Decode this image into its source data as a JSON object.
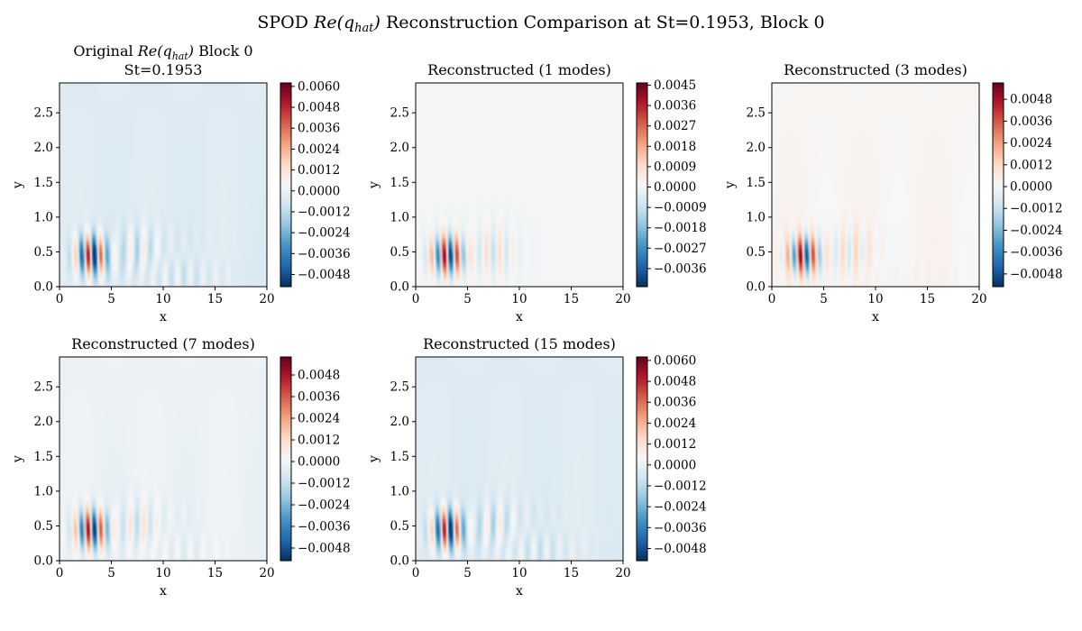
{
  "figure": {
    "suptitle_pre": "SPOD ",
    "suptitle_math": "Re(q",
    "suptitle_sub": "hat",
    "suptitle_math_end": ")",
    "suptitle_post": " Reconstruction Comparison at St=0.1953, Block 0"
  },
  "chart_data": [
    {
      "type": "heatmap",
      "title_pre": "Original ",
      "title_math": "Re(q",
      "title_sub": "hat",
      "title_math_end": ")",
      "title_post": " Block 0",
      "title_line2": "St=0.1953",
      "xlabel": "x",
      "ylabel": "y",
      "xlim": [
        0,
        20
      ],
      "ylim": [
        0,
        2.93
      ],
      "xticks": [
        "0",
        "5",
        "10",
        "15",
        "20"
      ],
      "yticks": [
        "0.0",
        "0.5",
        "1.0",
        "1.5",
        "2.0",
        "2.5"
      ],
      "colormap": "RdBu_r",
      "clim": [
        -0.0055,
        0.0062
      ],
      "colorbar_ticks": [
        "0.0060",
        "0.0048",
        "0.0036",
        "0.0024",
        "0.0012",
        "0.0000",
        "−0.0012",
        "−0.0024",
        "−0.0036",
        "−0.0048"
      ],
      "peak": 0.006,
      "background": -0.0004,
      "bg_drift": 0.0001,
      "high_freq": 0.45
    },
    {
      "type": "heatmap",
      "title": "Reconstructed (1 modes)",
      "xlabel": "x",
      "ylabel": "y",
      "xlim": [
        0,
        20
      ],
      "ylim": [
        0,
        2.93
      ],
      "xticks": [
        "0",
        "5",
        "10",
        "15",
        "20"
      ],
      "yticks": [
        "0.0",
        "0.5",
        "1.0",
        "1.5",
        "2.0",
        "2.5"
      ],
      "colormap": "RdBu_r",
      "clim": [
        -0.0044,
        0.0046
      ],
      "colorbar_ticks": [
        "0.0045",
        "0.0036",
        "0.0027",
        "0.0018",
        "0.0009",
        "0.0000",
        "−0.0009",
        "−0.0018",
        "−0.0027",
        "−0.0036"
      ],
      "peak": 0.0045,
      "background": 0.0,
      "bg_drift": 0.0,
      "high_freq": 0.0
    },
    {
      "type": "heatmap",
      "title": "Reconstructed (3 modes)",
      "xlabel": "x",
      "ylabel": "y",
      "xlim": [
        0,
        20
      ],
      "ylim": [
        0,
        2.93
      ],
      "xticks": [
        "0",
        "5",
        "10",
        "15",
        "20"
      ],
      "yticks": [
        "0.0",
        "0.5",
        "1.0",
        "1.5",
        "2.0",
        "2.5"
      ],
      "colormap": "RdBu_r",
      "clim": [
        -0.0055,
        0.0057
      ],
      "colorbar_ticks": [
        "0.0048",
        "0.0036",
        "0.0024",
        "0.0012",
        "0.0000",
        "−0.0012",
        "−0.0024",
        "−0.0036",
        "−0.0048"
      ],
      "peak": 0.0053,
      "background": 0.0002,
      "bg_drift": 0.00015,
      "high_freq": 0.15
    },
    {
      "type": "heatmap",
      "title": "Reconstructed (7 modes)",
      "xlabel": "x",
      "ylabel": "y",
      "xlim": [
        0,
        20
      ],
      "ylim": [
        0,
        2.93
      ],
      "xticks": [
        "0",
        "5",
        "10",
        "15",
        "20"
      ],
      "yticks": [
        "0.0",
        "0.5",
        "1.0",
        "1.5",
        "2.0",
        "2.5"
      ],
      "colormap": "RdBu_r",
      "clim": [
        -0.0055,
        0.0058
      ],
      "colorbar_ticks": [
        "0.0048",
        "0.0036",
        "0.0024",
        "0.0012",
        "0.0000",
        "−0.0012",
        "−0.0024",
        "−0.0036",
        "−0.0048"
      ],
      "peak": 0.0056,
      "background": -0.0002,
      "bg_drift": 0.0001,
      "high_freq": 0.3
    },
    {
      "type": "heatmap",
      "title": "Reconstructed (15 modes)",
      "xlabel": "x",
      "ylabel": "y",
      "xlim": [
        0,
        20
      ],
      "ylim": [
        0,
        2.93
      ],
      "xticks": [
        "0",
        "5",
        "10",
        "15",
        "20"
      ],
      "yticks": [
        "0.0",
        "0.5",
        "1.0",
        "1.5",
        "2.0",
        "2.5"
      ],
      "colormap": "RdBu_r",
      "clim": [
        -0.0055,
        0.0062
      ],
      "colorbar_ticks": [
        "0.0060",
        "0.0048",
        "0.0036",
        "0.0024",
        "0.0012",
        "0.0000",
        "−0.0012",
        "−0.0024",
        "−0.0036",
        "−0.0048"
      ],
      "peak": 0.006,
      "background": -0.0004,
      "bg_drift": 0.0001,
      "high_freq": 0.45
    }
  ]
}
